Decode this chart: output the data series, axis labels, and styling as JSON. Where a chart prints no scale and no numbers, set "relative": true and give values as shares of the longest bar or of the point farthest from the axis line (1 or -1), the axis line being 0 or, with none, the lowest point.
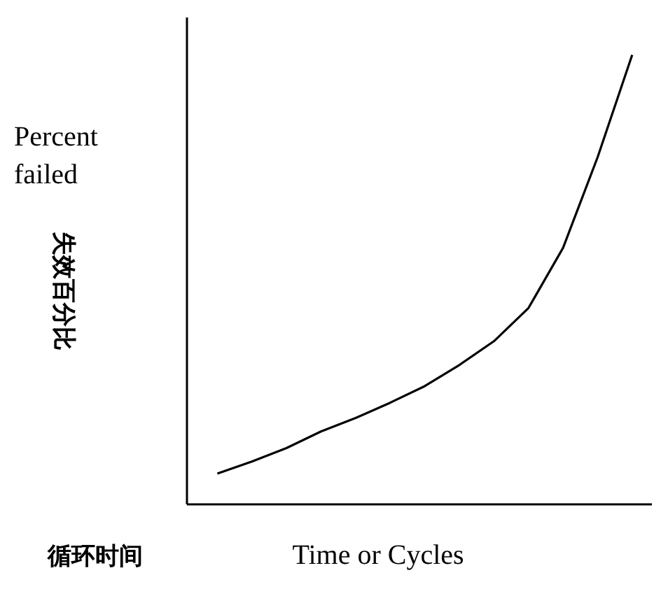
{
  "chart_data": {
    "type": "line",
    "relative": true,
    "ylabel": "Percent failed",
    "xlabel": "Time or Cycles",
    "annotations": [
      "失效百分比",
      "循环时间"
    ],
    "categories": [
      null,
      null,
      null,
      null,
      null,
      null,
      null,
      null,
      null,
      null,
      null,
      null,
      null
    ],
    "series": [
      {
        "color": "#000000",
        "values": [
          0.067,
          0.094,
          0.124,
          0.161,
          0.191,
          0.225,
          0.262,
          0.309,
          0.362,
          0.436,
          0.57,
          0.772,
          1.0
        ]
      }
    ],
    "grid": false,
    "marker": "none",
    "line_style": "solid"
  }
}
